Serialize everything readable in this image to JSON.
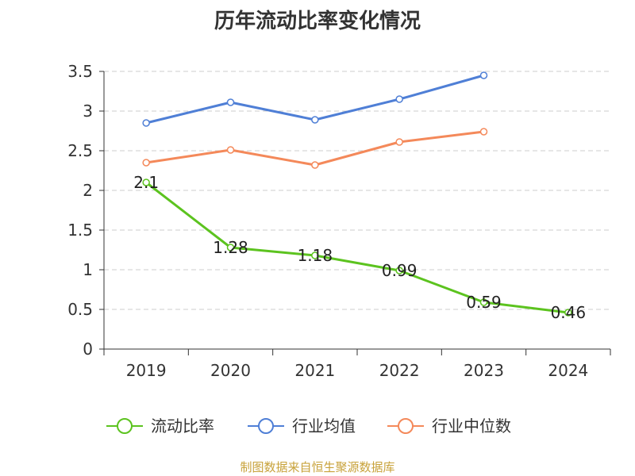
{
  "chart_data": {
    "type": "line",
    "title": "历年流动比率变化情况",
    "categories": [
      "2019",
      "2020",
      "2021",
      "2022",
      "2023",
      "2024"
    ],
    "ylim": [
      0,
      3.5
    ],
    "yticks": [
      "0",
      "0.5",
      "1",
      "1.5",
      "2",
      "2.5",
      "3",
      "3.5"
    ],
    "grid": "horizontal dashed",
    "legend_position": "bottom",
    "series": [
      {
        "name": "流动比率",
        "color": "#5cc31f",
        "values": [
          2.1,
          1.28,
          1.18,
          0.99,
          0.59,
          0.46
        ],
        "labels": [
          "2.1",
          "1.28",
          "1.18",
          "0.99",
          "0.59",
          "0.46"
        ]
      },
      {
        "name": "行业均值",
        "color": "#4f7fd6",
        "values": [
          2.85,
          3.11,
          2.89,
          3.15,
          3.45,
          null
        ]
      },
      {
        "name": "行业中位数",
        "color": "#f4895a",
        "values": [
          2.35,
          2.51,
          2.32,
          2.61,
          2.74,
          null
        ]
      }
    ]
  },
  "footer": {
    "source": "制图数据来自恒生聚源数据库"
  }
}
